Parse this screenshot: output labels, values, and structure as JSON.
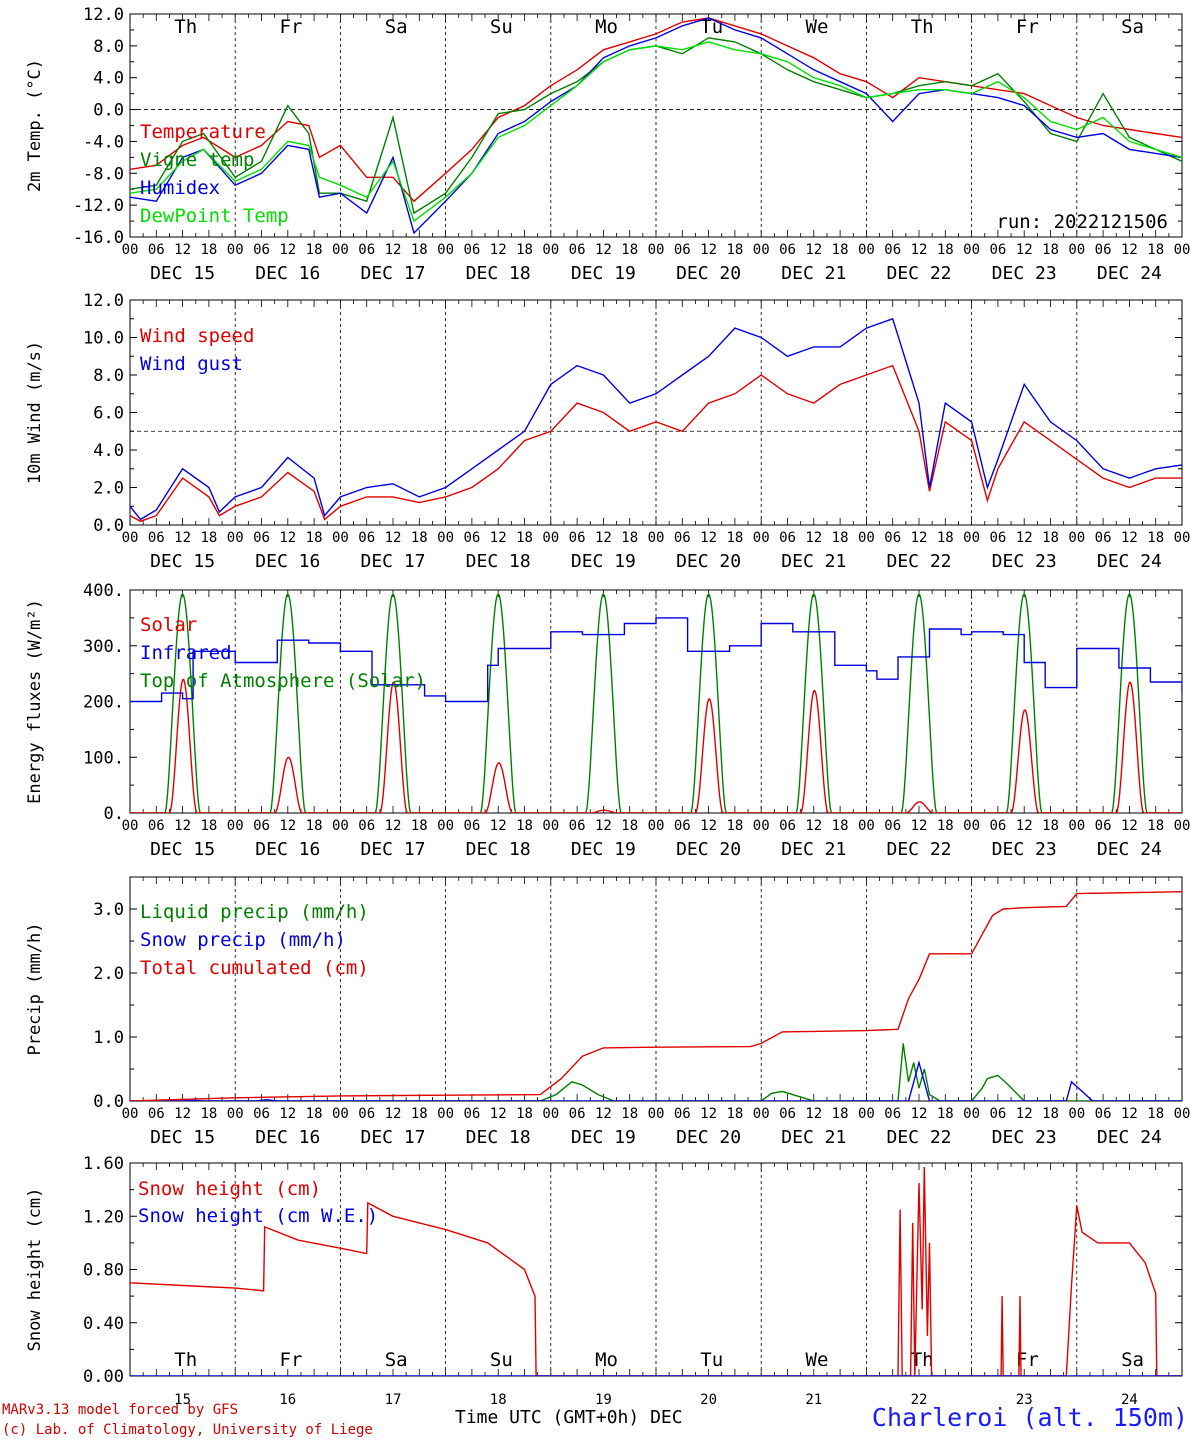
{
  "footer": {
    "credit_line1": "MARv3.13 model forced by GFS",
    "credit_line2": "(c) Lab. of Climatology, University of Liege",
    "xaxis_title": "Time UTC (GMT+0h) DEC",
    "station": "Charleroi (alt. 150m)"
  },
  "weekdays": [
    {
      "label": "Th",
      "color": "#000000"
    },
    {
      "label": "Fr",
      "color": "#000000"
    },
    {
      "label": "Sa",
      "color": "#ff0000"
    },
    {
      "label": "Su",
      "color": "#ff0000"
    },
    {
      "label": "Mo",
      "color": "#000000"
    },
    {
      "label": "Tu",
      "color": "#000000"
    },
    {
      "label": "We",
      "color": "#000000"
    },
    {
      "label": "Th",
      "color": "#000000"
    },
    {
      "label": "Fr",
      "color": "#000000"
    },
    {
      "label": "Sa",
      "color": "#ff0000"
    }
  ],
  "date_labels": [
    "DEC 15",
    "DEC 16",
    "DEC 17",
    "DEC 18",
    "DEC 19",
    "DEC 20",
    "DEC 21",
    "DEC 22",
    "DEC 23",
    "DEC 24"
  ],
  "day_numbers": [
    "15",
    "16",
    "17",
    "18",
    "19",
    "20",
    "21",
    "22",
    "23",
    "24"
  ],
  "hour_ticks": [
    "00",
    "06",
    "12",
    "18"
  ],
  "chart_data": [
    {
      "type": "line",
      "ylabel": "2m Temp. (°C)",
      "ylim": [
        -16,
        12
      ],
      "yticks": [
        "-16.0",
        "-12.0",
        "-8.0",
        "-4.0",
        "0.0",
        "4.0",
        "8.0",
        "12.0"
      ],
      "ref_line": 0,
      "run_label": "run: 2022121506",
      "x_unit": "days since Dec 15 00 UTC",
      "series": [
        {
          "name": "Temperature",
          "color": "#e00000",
          "x": [
            0,
            0.25,
            0.5,
            0.7,
            1.0,
            1.25,
            1.5,
            1.7,
            1.8,
            2.0,
            2.25,
            2.5,
            2.7,
            3.0,
            3.25,
            3.5,
            3.75,
            4.0,
            4.25,
            4.5,
            4.75,
            5.0,
            5.25,
            5.5,
            5.75,
            6.0,
            6.25,
            6.5,
            6.75,
            7.0,
            7.25,
            7.5,
            7.75,
            8.0,
            8.25,
            8.5,
            8.75,
            9.0,
            9.25,
            9.5,
            9.75,
            10.0
          ],
          "y": [
            -7.5,
            -7.0,
            -4.5,
            -3.5,
            -6.0,
            -4.5,
            -1.5,
            -2.0,
            -6.0,
            -4.5,
            -8.5,
            -8.5,
            -11.5,
            -8.0,
            -5.0,
            -1.0,
            0.5,
            3.0,
            5.0,
            7.5,
            8.5,
            9.5,
            11.0,
            11.5,
            10.5,
            9.5,
            8.0,
            6.5,
            4.5,
            3.5,
            1.5,
            4.0,
            3.5,
            3.0,
            2.5,
            2.0,
            0.5,
            -1.0,
            -2.0,
            -2.5,
            -3.0,
            -3.5
          ]
        },
        {
          "name": "Vigne temp",
          "color": "#008000",
          "x": [
            0,
            0.25,
            0.5,
            0.7,
            1.0,
            1.25,
            1.5,
            1.7,
            1.8,
            2.0,
            2.25,
            2.5,
            2.7,
            3.0,
            3.25,
            3.5,
            3.75,
            4.0,
            4.25,
            4.5,
            4.75,
            5.0,
            5.25,
            5.5,
            5.75,
            6.0,
            6.25,
            6.5,
            6.75,
            7.0,
            7.25,
            7.5,
            7.75,
            8.0,
            8.25,
            8.5,
            8.75,
            9.0,
            9.25,
            9.5,
            9.75,
            10.0
          ],
          "y": [
            -10.0,
            -9.5,
            -4.0,
            -3.0,
            -8.5,
            -6.5,
            0.5,
            -3.0,
            -10.5,
            -10.5,
            -11.5,
            -1.0,
            -13.0,
            -10.5,
            -6.0,
            -0.5,
            0.0,
            2.0,
            3.5,
            6.0,
            7.5,
            8.0,
            7.0,
            9.0,
            8.5,
            7.0,
            5.0,
            3.5,
            2.5,
            1.5,
            2.0,
            3.0,
            3.5,
            3.0,
            4.5,
            1.0,
            -3.0,
            -4.0,
            2.0,
            -3.5,
            -5.0,
            -6.5
          ]
        },
        {
          "name": "Humidex",
          "color": "#0000e0",
          "x": [
            0,
            0.25,
            0.5,
            0.7,
            1.0,
            1.25,
            1.5,
            1.7,
            1.8,
            2.0,
            2.25,
            2.5,
            2.7,
            3.0,
            3.25,
            3.5,
            3.75,
            4.0,
            4.25,
            4.5,
            4.75,
            5.0,
            5.25,
            5.5,
            5.75,
            6.0,
            6.25,
            6.5,
            6.75,
            7.0,
            7.25,
            7.5,
            7.75,
            8.0,
            8.25,
            8.5,
            8.75,
            9.0,
            9.25,
            9.5,
            9.75,
            10.0
          ],
          "y": [
            -11.0,
            -11.5,
            -6.0,
            -5.0,
            -9.5,
            -8.0,
            -4.5,
            -5.0,
            -11.0,
            -10.5,
            -13.0,
            -6.0,
            -15.5,
            -11.5,
            -8.0,
            -3.0,
            -1.5,
            1.0,
            3.0,
            6.5,
            8.0,
            9.0,
            10.5,
            11.5,
            10.0,
            9.0,
            7.0,
            5.0,
            3.5,
            2.0,
            -1.5,
            2.0,
            2.5,
            2.0,
            1.5,
            0.5,
            -2.5,
            -3.5,
            -3.0,
            -5.0,
            -5.5,
            -6.0
          ]
        },
        {
          "name": "DewPoint Temp",
          "color": "#00e000",
          "x": [
            0,
            0.25,
            0.5,
            0.7,
            1.0,
            1.25,
            1.5,
            1.7,
            1.8,
            2.0,
            2.25,
            2.5,
            2.7,
            3.0,
            3.25,
            3.5,
            3.75,
            4.0,
            4.25,
            4.5,
            4.75,
            5.0,
            5.25,
            5.5,
            5.75,
            6.0,
            6.25,
            6.5,
            6.75,
            7.0,
            7.25,
            7.5,
            7.75,
            8.0,
            8.25,
            8.5,
            8.75,
            9.0,
            9.25,
            9.5,
            9.75,
            10.0
          ],
          "y": [
            -10.5,
            -10.0,
            -6.5,
            -5.0,
            -9.0,
            -7.5,
            -4.0,
            -4.5,
            -8.5,
            -9.5,
            -11.0,
            -6.5,
            -14.0,
            -11.0,
            -8.0,
            -3.5,
            -2.0,
            0.5,
            3.0,
            6.0,
            7.5,
            8.0,
            7.5,
            8.5,
            7.5,
            7.0,
            6.0,
            4.0,
            3.0,
            1.5,
            2.0,
            2.5,
            2.5,
            2.0,
            3.5,
            1.5,
            -1.5,
            -2.5,
            -1.0,
            -4.0,
            -5.0,
            -6.0
          ]
        }
      ]
    },
    {
      "type": "line",
      "ylabel": "10m Wind (m/s)",
      "ylim": [
        0,
        12
      ],
      "yticks": [
        "0.0",
        "2.0",
        "4.0",
        "6.0",
        "8.0",
        "10.0",
        "12.0"
      ],
      "ref_line": 5,
      "x_unit": "days since Dec 15 00 UTC",
      "series": [
        {
          "name": "Wind speed",
          "color": "#e00000",
          "x": [
            0,
            0.1,
            0.25,
            0.5,
            0.75,
            0.85,
            1.0,
            1.25,
            1.5,
            1.75,
            1.85,
            2.0,
            2.25,
            2.5,
            2.75,
            3.0,
            3.25,
            3.5,
            3.75,
            4.0,
            4.25,
            4.5,
            4.75,
            5.0,
            5.25,
            5.5,
            5.75,
            6.0,
            6.25,
            6.5,
            6.75,
            7.0,
            7.25,
            7.5,
            7.6,
            7.75,
            8.0,
            8.15,
            8.25,
            8.5,
            8.75,
            9.0,
            9.25,
            9.5,
            9.75,
            10.0
          ],
          "y": [
            0.5,
            0.2,
            0.5,
            2.5,
            1.5,
            0.5,
            1.0,
            1.5,
            2.8,
            1.8,
            0.3,
            1.0,
            1.5,
            1.5,
            1.2,
            1.5,
            2.0,
            3.0,
            4.5,
            5.0,
            6.5,
            6.0,
            5.0,
            5.5,
            5.0,
            6.5,
            7.0,
            8.0,
            7.0,
            6.5,
            7.5,
            8.0,
            8.5,
            5.0,
            1.8,
            5.5,
            4.5,
            1.3,
            3.0,
            5.5,
            4.5,
            3.5,
            2.5,
            2.0,
            2.5,
            2.5
          ]
        },
        {
          "name": "Wind gust",
          "color": "#0000e0",
          "x": [
            0,
            0.1,
            0.25,
            0.5,
            0.75,
            0.85,
            1.0,
            1.25,
            1.5,
            1.75,
            1.85,
            2.0,
            2.25,
            2.5,
            2.75,
            3.0,
            3.25,
            3.5,
            3.75,
            4.0,
            4.25,
            4.5,
            4.75,
            5.0,
            5.25,
            5.5,
            5.75,
            6.0,
            6.25,
            6.5,
            6.75,
            7.0,
            7.25,
            7.5,
            7.6,
            7.75,
            8.0,
            8.15,
            8.25,
            8.5,
            8.75,
            9.0,
            9.25,
            9.5,
            9.75,
            10.0
          ],
          "y": [
            1.0,
            0.3,
            0.8,
            3.0,
            2.0,
            0.7,
            1.5,
            2.0,
            3.6,
            2.5,
            0.5,
            1.5,
            2.0,
            2.2,
            1.5,
            2.0,
            3.0,
            4.0,
            5.0,
            7.5,
            8.5,
            8.0,
            6.5,
            7.0,
            8.0,
            9.0,
            10.5,
            10.0,
            9.0,
            9.5,
            9.5,
            10.5,
            11.0,
            6.5,
            2.0,
            6.5,
            5.5,
            2.0,
            3.5,
            7.5,
            5.5,
            4.5,
            3.0,
            2.5,
            3.0,
            3.2
          ]
        }
      ]
    },
    {
      "type": "line",
      "ylabel": "Energy fluxes (W/m²)",
      "ylim": [
        0,
        400
      ],
      "yticks": [
        "0.",
        "100.",
        "200.",
        "300.",
        "400."
      ],
      "x_unit": "days since Dec 15 00 UTC",
      "solar_peaks": [
        240,
        100,
        235,
        90,
        5,
        205,
        220,
        20,
        185,
        235
      ],
      "toa_peak": 393,
      "series": [
        {
          "name": "Solar",
          "color": "#e00000"
        },
        {
          "name": "Infrared",
          "color": "#0000e0",
          "x": [
            0,
            0.3,
            0.5,
            0.6,
            1.0,
            1.4,
            1.7,
            2.0,
            2.3,
            2.8,
            3.0,
            3.4,
            3.5,
            4.0,
            4.3,
            4.7,
            5.0,
            5.3,
            5.7,
            6.0,
            6.3,
            6.7,
            7.0,
            7.1,
            7.3,
            7.6,
            7.9,
            8.0,
            8.3,
            8.5,
            8.7,
            9.0,
            9.4,
            9.7,
            10.0
          ],
          "y": [
            200,
            215,
            205,
            290,
            270,
            310,
            305,
            290,
            230,
            210,
            200,
            265,
            295,
            325,
            320,
            340,
            350,
            290,
            300,
            340,
            325,
            265,
            255,
            240,
            280,
            330,
            320,
            325,
            320,
            270,
            225,
            295,
            260,
            235,
            215
          ]
        },
        {
          "name": "Top of Atmosphere (Solar)",
          "color": "#008000"
        }
      ]
    },
    {
      "type": "line",
      "ylabel": "Precip (mm/h)",
      "ylim": [
        0,
        3.5
      ],
      "yticks": [
        "0.0",
        "1.0",
        "2.0",
        "3.0"
      ],
      "x_unit": "days since Dec 15 00 UTC",
      "series": [
        {
          "name": "Liquid precip (mm/h)",
          "color": "#008000",
          "x": [
            0,
            3.9,
            4.05,
            4.2,
            4.3,
            4.45,
            4.6,
            6.0,
            6.1,
            6.2,
            6.4,
            6.5,
            7.3,
            7.35,
            7.4,
            7.45,
            7.5,
            7.55,
            7.6,
            7.7,
            8.0,
            8.1,
            8.15,
            8.25,
            8.35,
            8.5,
            10.0
          ],
          "y": [
            0,
            0,
            0.1,
            0.3,
            0.25,
            0.1,
            0,
            0,
            0.12,
            0.15,
            0.05,
            0,
            0,
            0.9,
            0.3,
            0.6,
            0.2,
            0.5,
            0.1,
            0,
            0,
            0.2,
            0.35,
            0.4,
            0.25,
            0,
            0
          ]
        },
        {
          "name": "Snow precip (mm/h)",
          "color": "#0000e0",
          "x": [
            0,
            0.5,
            0.6,
            0.7,
            1.2,
            1.3,
            1.4,
            7.4,
            7.5,
            7.55,
            7.6,
            8.9,
            8.95,
            9.05,
            9.15,
            10.0
          ],
          "y": [
            0,
            0,
            0.01,
            0,
            0,
            0.02,
            0,
            0,
            0.6,
            0.3,
            0,
            0,
            0.3,
            0.15,
            0,
            0
          ]
        },
        {
          "name": "Total cumulated (cm)",
          "color": "#e00000",
          "x": [
            0,
            1.0,
            2.0,
            3.0,
            3.9,
            4.1,
            4.3,
            4.5,
            5.0,
            5.9,
            6.0,
            6.2,
            7.0,
            7.3,
            7.4,
            7.5,
            7.6,
            8.0,
            8.1,
            8.2,
            8.3,
            8.5,
            8.9,
            9.0,
            10.0
          ],
          "y": [
            0,
            0.05,
            0.08,
            0.09,
            0.1,
            0.35,
            0.7,
            0.83,
            0.84,
            0.85,
            0.9,
            1.08,
            1.1,
            1.12,
            1.6,
            1.9,
            2.3,
            2.3,
            2.6,
            2.9,
            3.0,
            3.02,
            3.04,
            3.24,
            3.27
          ]
        }
      ]
    },
    {
      "type": "line",
      "ylabel": "Snow height (cm)",
      "ylim": [
        0,
        1.6
      ],
      "yticks": [
        "0.00",
        "0.40",
        "0.80",
        "1.20",
        "1.60"
      ],
      "x_unit": "days since Dec 15 00 UTC",
      "series": [
        {
          "name": "Snow height (cm)",
          "color": "#e00000",
          "x": [
            0,
            0.5,
            1.0,
            1.27,
            1.28,
            1.6,
            2.0,
            2.25,
            2.26,
            2.5,
            3.0,
            3.4,
            3.75,
            3.85,
            3.86,
            7.3,
            7.32,
            7.34,
            7.42,
            7.44,
            7.46,
            7.5,
            7.53,
            7.55,
            7.58,
            7.6,
            7.62,
            8.28,
            8.29,
            8.3,
            8.45,
            8.46,
            8.47,
            8.9,
            8.95,
            9.0,
            9.05,
            9.2,
            9.5,
            9.65,
            9.75,
            9.76,
            10.0
          ],
          "y": [
            0.7,
            0.68,
            0.66,
            0.64,
            1.12,
            1.02,
            0.96,
            0.92,
            1.3,
            1.2,
            1.1,
            1.0,
            0.8,
            0.6,
            0,
            0,
            1.25,
            0,
            0,
            1.15,
            0,
            1.45,
            0.5,
            1.57,
            0.3,
            1.0,
            0,
            0,
            0.6,
            0,
            0,
            0.6,
            0,
            0,
            0.68,
            1.28,
            1.08,
            1.0,
            1.0,
            0.85,
            0.62,
            0,
            0
          ]
        },
        {
          "name": "Snow height (cm W.E.)",
          "color": "#0000e0",
          "x": [
            0,
            10.0
          ],
          "y": [
            0,
            0
          ]
        }
      ]
    }
  ]
}
